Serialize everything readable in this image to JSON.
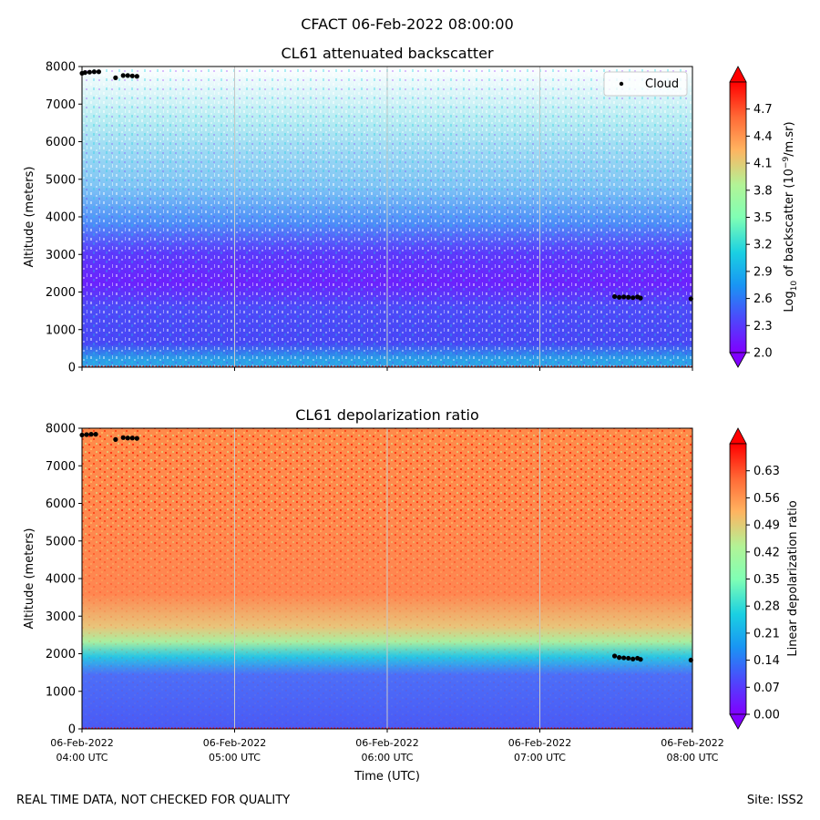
{
  "figure": {
    "suptitle": "CFACT 06-Feb-2022 08:00:00",
    "footer_left": "REAL TIME DATA, NOT CHECKED FOR QUALITY",
    "footer_right": "Site: ISS2"
  },
  "chart_data": [
    {
      "type": "heatmap",
      "title": "CL61 attenuated backscatter",
      "xlabel": "",
      "ylabel": "Altitude (meters)",
      "xlim": [
        "06-Feb-2022 04:00 UTC",
        "06-Feb-2022 08:00 UTC"
      ],
      "ylim": [
        0,
        8000
      ],
      "yticks": [
        0,
        1000,
        2000,
        3000,
        4000,
        5000,
        6000,
        7000,
        8000
      ],
      "grid": "vertical lines at hourly ticks",
      "colormap": "rainbow",
      "colorbar": {
        "label": "Log10 of backscatter (10^-9/m.sr)",
        "label_parts": [
          "Log",
          "10",
          " of backscatter (10",
          "−9",
          "/m.sr)"
        ],
        "range": [
          2.0,
          5.0
        ],
        "ticks": [
          2.0,
          2.3,
          2.6,
          2.9,
          3.2,
          3.5,
          3.8,
          4.1,
          4.4,
          4.7
        ],
        "tick_labels": [
          "2.0",
          "2.3",
          "2.6",
          "2.9",
          "3.2",
          "3.5",
          "3.8",
          "4.1",
          "4.4",
          "4.7"
        ],
        "extend": "both"
      },
      "legend": {
        "placement": "top-right",
        "entries": [
          "Cloud"
        ]
      },
      "cloud_points": [
        {
          "hour": 4.0,
          "alt": 7820
        },
        {
          "hour": 4.02,
          "alt": 7840
        },
        {
          "hour": 4.05,
          "alt": 7850
        },
        {
          "hour": 4.08,
          "alt": 7860
        },
        {
          "hour": 4.11,
          "alt": 7860
        },
        {
          "hour": 4.22,
          "alt": 7700
        },
        {
          "hour": 4.27,
          "alt": 7760
        },
        {
          "hour": 4.3,
          "alt": 7760
        },
        {
          "hour": 4.33,
          "alt": 7750
        },
        {
          "hour": 4.36,
          "alt": 7740
        },
        {
          "hour": 7.49,
          "alt": 1880
        },
        {
          "hour": 7.52,
          "alt": 1860
        },
        {
          "hour": 7.55,
          "alt": 1870
        },
        {
          "hour": 7.58,
          "alt": 1860
        },
        {
          "hour": 7.61,
          "alt": 1850
        },
        {
          "hour": 7.64,
          "alt": 1870
        },
        {
          "hour": 7.66,
          "alt": 1840
        },
        {
          "hour": 7.99,
          "alt": 1820
        }
      ]
    },
    {
      "type": "heatmap",
      "title": "CL61 depolarization ratio",
      "xlabel": "Time (UTC)",
      "ylabel": "Altitude (meters)",
      "xticks": [
        [
          "06-Feb-2022",
          "04:00 UTC"
        ],
        [
          "06-Feb-2022",
          "05:00 UTC"
        ],
        [
          "06-Feb-2022",
          "06:00 UTC"
        ],
        [
          "06-Feb-2022",
          "07:00 UTC"
        ],
        [
          "06-Feb-2022",
          "08:00 UTC"
        ]
      ],
      "ylim": [
        0,
        8000
      ],
      "yticks": [
        0,
        1000,
        2000,
        3000,
        4000,
        5000,
        6000,
        7000,
        8000
      ],
      "grid": "vertical lines at hourly ticks",
      "colormap": "rainbow",
      "colorbar": {
        "label": "Linear depolarization ratio",
        "range": [
          0.0,
          0.7
        ],
        "ticks": [
          0.0,
          0.07,
          0.14,
          0.21,
          0.28,
          0.35,
          0.42,
          0.49,
          0.56,
          0.63
        ],
        "tick_labels": [
          "0.00",
          "0.07",
          "0.14",
          "0.21",
          "0.28",
          "0.35",
          "0.42",
          "0.49",
          "0.56",
          "0.63"
        ],
        "extend": "both"
      },
      "cloud_points": [
        {
          "hour": 4.0,
          "alt": 7820
        },
        {
          "hour": 4.03,
          "alt": 7830
        },
        {
          "hour": 4.06,
          "alt": 7840
        },
        {
          "hour": 4.09,
          "alt": 7840
        },
        {
          "hour": 4.22,
          "alt": 7700
        },
        {
          "hour": 4.27,
          "alt": 7750
        },
        {
          "hour": 4.3,
          "alt": 7740
        },
        {
          "hour": 4.33,
          "alt": 7740
        },
        {
          "hour": 4.36,
          "alt": 7730
        },
        {
          "hour": 7.49,
          "alt": 1940
        },
        {
          "hour": 7.52,
          "alt": 1900
        },
        {
          "hour": 7.55,
          "alt": 1890
        },
        {
          "hour": 7.58,
          "alt": 1880
        },
        {
          "hour": 7.61,
          "alt": 1860
        },
        {
          "hour": 7.64,
          "alt": 1880
        },
        {
          "hour": 7.66,
          "alt": 1850
        },
        {
          "hour": 7.99,
          "alt": 1830
        }
      ]
    }
  ]
}
